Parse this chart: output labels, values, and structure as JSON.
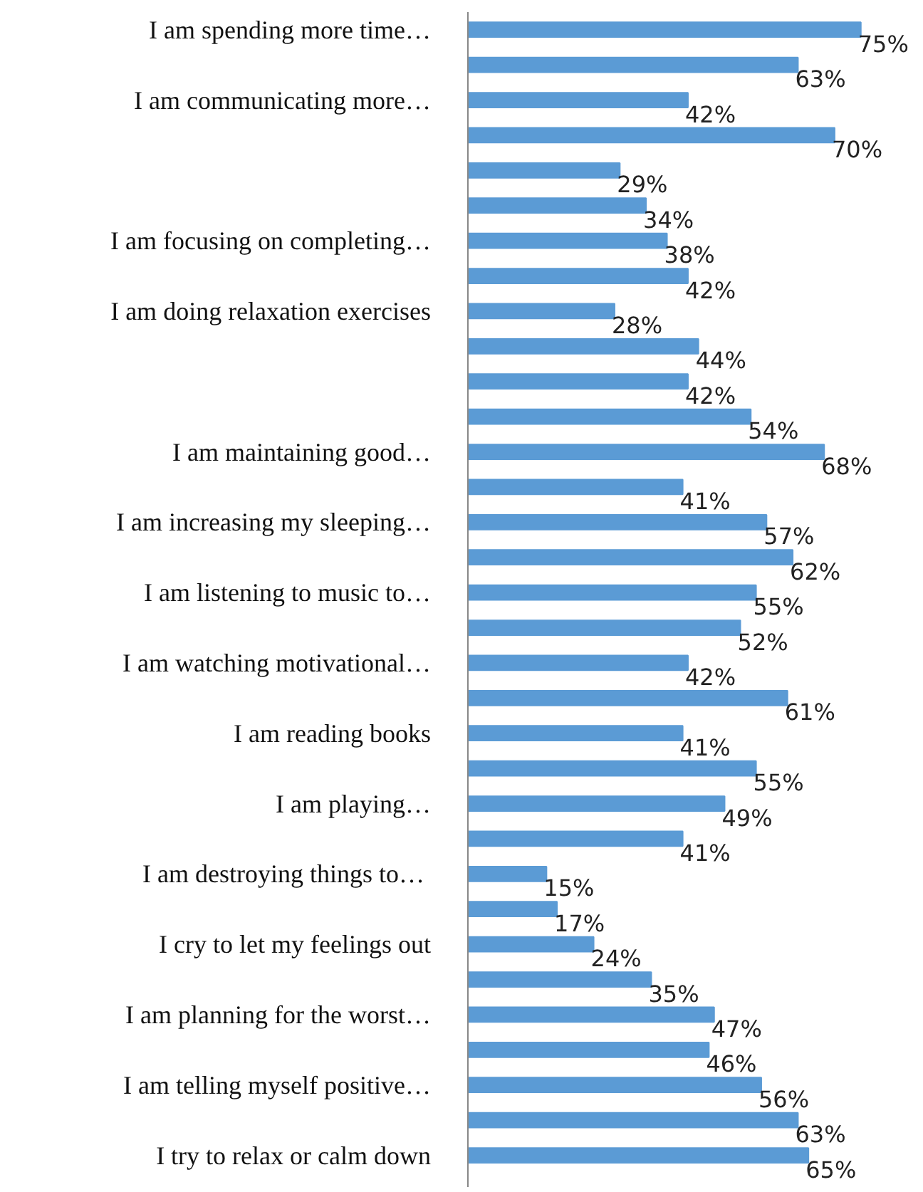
{
  "chart_data": {
    "type": "bar",
    "orientation": "horizontal",
    "color": "#5b9bd5",
    "grid": false,
    "tick_labels": "y",
    "categories": [
      "I am spending more time…",
      null,
      "I am communicating more…",
      null,
      null,
      null,
      "I am focusing on completing…",
      null,
      "I am doing relaxation exercises",
      null,
      null,
      null,
      "I am maintaining good…",
      null,
      "I am increasing my sleeping…",
      null,
      "I am listening to music to…",
      null,
      "I am watching motivational…",
      null,
      "I am reading books",
      null,
      "I am playing…",
      null,
      "I am destroying  things to…",
      null,
      "I cry to let my feelings out",
      null,
      "I am planning for the worst…",
      null,
      "I am telling myself positive…",
      null,
      "I try to relax or calm down"
    ],
    "values": [
      75,
      63,
      42,
      70,
      29,
      34,
      38,
      42,
      28,
      44,
      42,
      54,
      68,
      41,
      57,
      62,
      55,
      52,
      42,
      61,
      41,
      55,
      49,
      41,
      15,
      17,
      24,
      35,
      47,
      46,
      56,
      63,
      65
    ],
    "value_labels": [
      "75%",
      "63%",
      "42%",
      "70%",
      "29%",
      "34%",
      "38%",
      "42%",
      "28%",
      "44%",
      "42%",
      "54%",
      "68%",
      "41%",
      "57%",
      "62%",
      "55%",
      "52%",
      "42%",
      "61%",
      "41%",
      "55%",
      "49%",
      "41%",
      "15%",
      "17%",
      "24%",
      "35%",
      "47%",
      "46%",
      "56%",
      "63%",
      "65%"
    ]
  }
}
